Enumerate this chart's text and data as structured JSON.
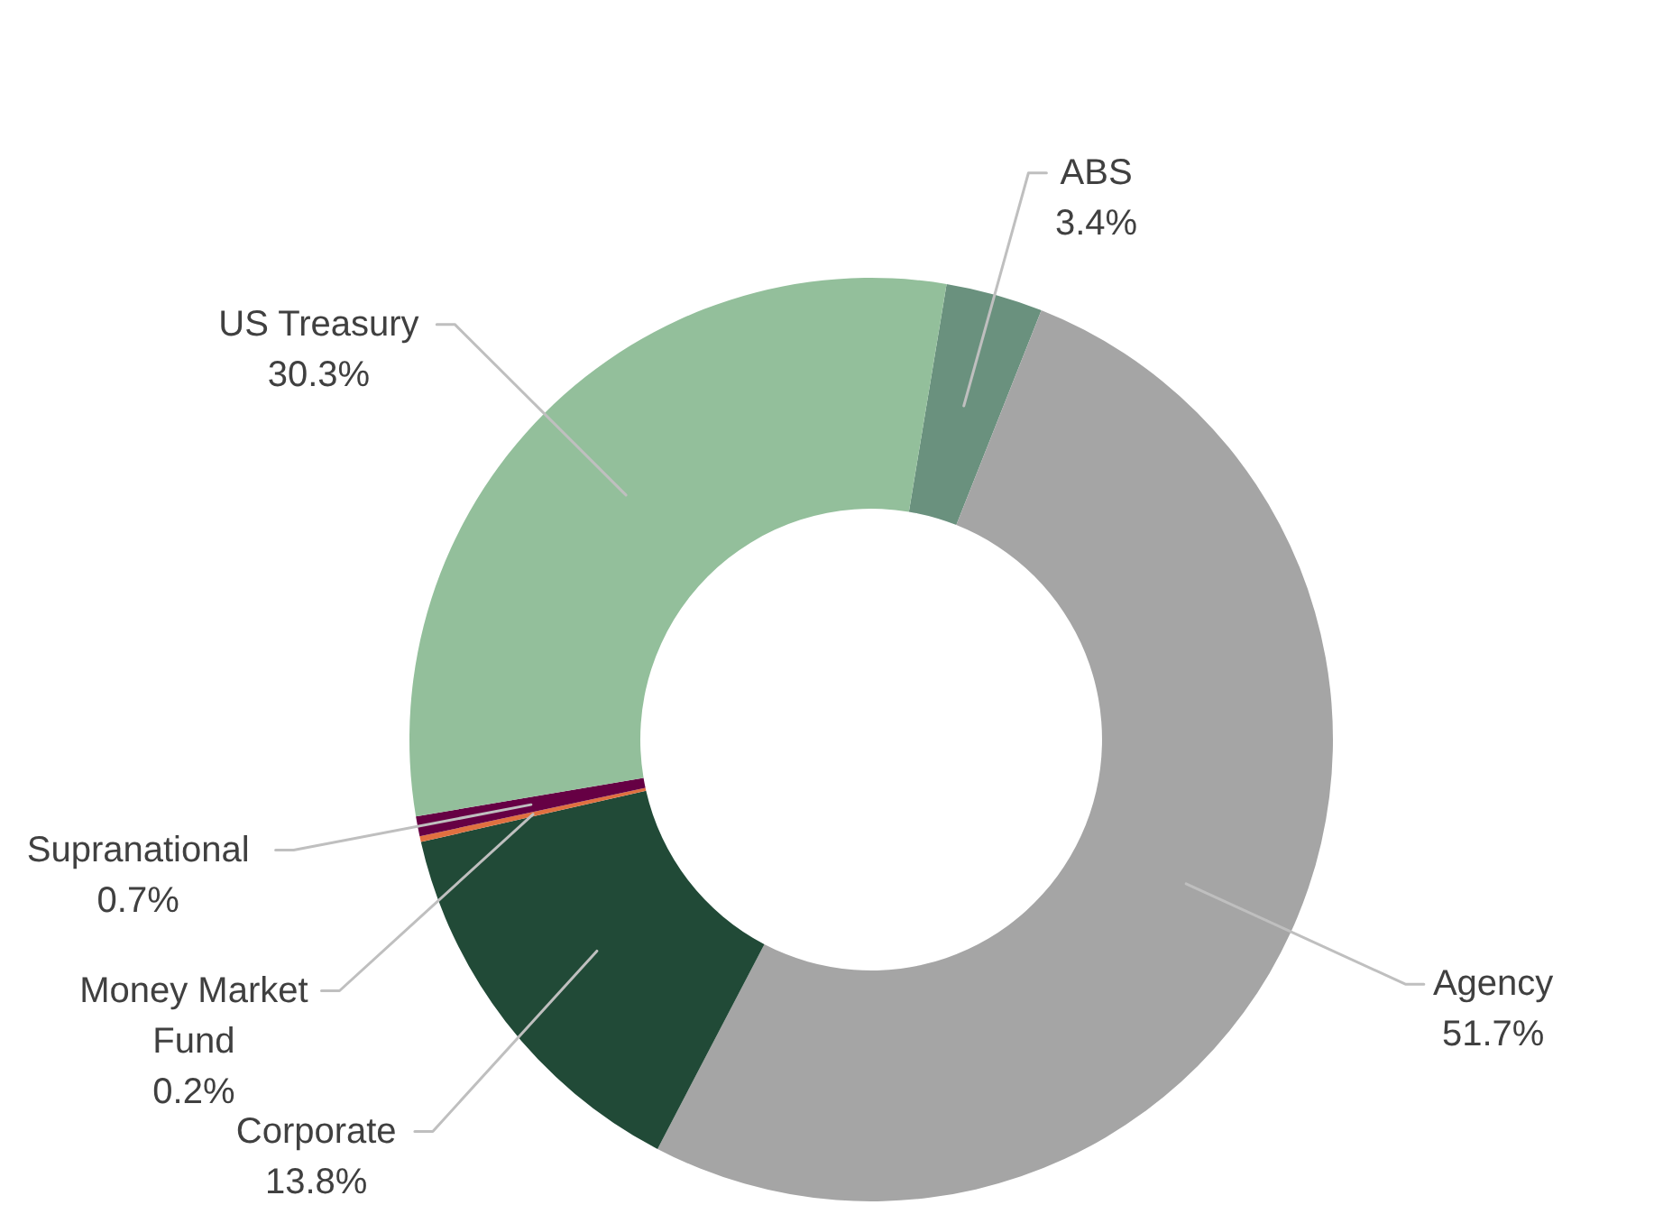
{
  "chart_data": {
    "type": "donut",
    "categories": [
      "ABS",
      "Agency",
      "Corporate",
      "Money Market Fund",
      "Supranational",
      "US Treasury"
    ],
    "values": [
      3.4,
      51.7,
      13.8,
      0.2,
      0.7,
      30.3
    ],
    "colors": [
      "#6a917e",
      "#a5a5a5",
      "#214a37",
      "#e07040",
      "#660044",
      "#93bf9b"
    ],
    "value_labels": [
      "3.4%",
      "51.7%",
      "13.8%",
      "0.2%",
      "0.7%",
      "30.3%"
    ]
  }
}
